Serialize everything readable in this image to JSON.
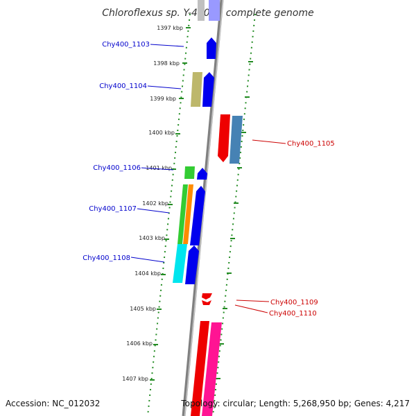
{
  "title": "Chloroflexus sp. Y-400-fl, complete genome",
  "accession": "Accession: NC_012032",
  "topology": "Topology: circular; Length: 5,268,950 bp; Genes: 4,217",
  "kbp_labels": [
    "1397 kbp",
    "1398 kbp",
    "1399 kbp",
    "1400 kbp",
    "1401 kbp",
    "1402 kbp",
    "1403 kbp",
    "1404 kbp",
    "1405 kbp",
    "1406 kbp",
    "1407 kbp"
  ],
  "gene_labels_left": [
    "Chy400_1103",
    "Chy400_1104",
    "Chy400_1106",
    "Chy400_1107",
    "Chy400_1108"
  ],
  "gene_labels_right": [
    "Chy400_1105",
    "Chy400_1109",
    "Chy400_1110"
  ],
  "colors": {
    "blue_gene": "#0000ee",
    "red_gene": "#ee0000",
    "steelblue_gene": "#4682b4",
    "khaki_gene": "#bdb76b",
    "green_gene": "#33cc33",
    "orange_gene": "#ff8c00",
    "cyan_gene": "#00e5ee",
    "pink_gene": "#ff1493",
    "backbone": "#808080",
    "tick": "#228b22"
  }
}
